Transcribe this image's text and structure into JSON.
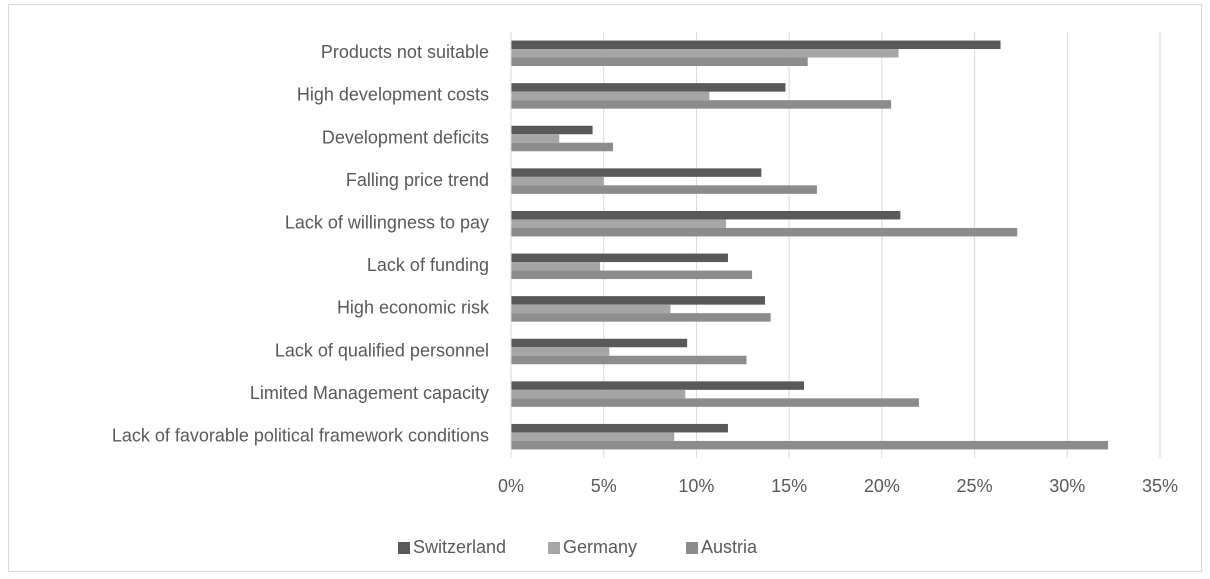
{
  "chart_data": {
    "type": "hbar",
    "categories": [
      "Products not suitable",
      "High development costs",
      "Development deficits",
      "Falling price trend",
      "Lack of willingness to pay",
      "Lack of funding",
      "High economic risk",
      "Lack of qualified personnel",
      "Limited Management capacity",
      "Lack of favorable political framework conditions"
    ],
    "series": [
      {
        "name": "Switzerland",
        "color": "#595959",
        "values": [
          26.4,
          14.8,
          4.4,
          13.5,
          21.0,
          11.7,
          13.7,
          9.5,
          15.8,
          11.7
        ]
      },
      {
        "name": "Germany",
        "color": "#a6a6a6",
        "values": [
          20.9,
          10.7,
          2.6,
          5.0,
          11.6,
          4.8,
          8.6,
          5.3,
          9.4,
          8.8
        ]
      },
      {
        "name": "Austria",
        "color": "#8c8c8c",
        "values": [
          16.0,
          20.5,
          5.5,
          16.5,
          27.3,
          13.0,
          14.0,
          12.7,
          22.0,
          32.2
        ]
      }
    ],
    "xlim": [
      0,
      35
    ],
    "xticks": [
      {
        "value": 0,
        "label": "0%"
      },
      {
        "value": 5,
        "label": "5%"
      },
      {
        "value": 10,
        "label": "10%"
      },
      {
        "value": 15,
        "label": "15%"
      },
      {
        "value": 20,
        "label": "20%"
      },
      {
        "value": 25,
        "label": "25%"
      },
      {
        "value": 30,
        "label": "30%"
      },
      {
        "value": 35,
        "label": "35%"
      }
    ],
    "grid": true,
    "legend": "bottom"
  }
}
